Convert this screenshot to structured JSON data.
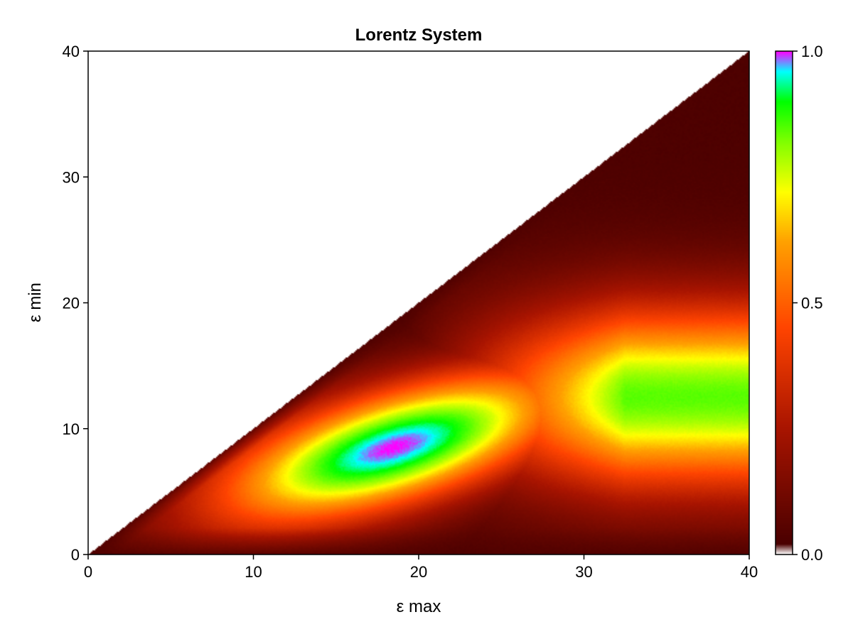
{
  "chart_data": {
    "type": "heatmap",
    "title": "Lorentz System",
    "xlabel": "ε max",
    "ylabel": "ε min",
    "xlim": [
      0,
      40
    ],
    "ylim": [
      0,
      40
    ],
    "x_ticks": [
      0,
      10,
      20,
      30,
      40
    ],
    "y_ticks": [
      0,
      10,
      20,
      30,
      40
    ],
    "region": "lower-triangle (ε min ≤ ε max)",
    "peak": {
      "x": 18.5,
      "y": 8.5,
      "value": 1.0
    },
    "colorbar": {
      "range": [
        0.0,
        1.0
      ],
      "ticks": [
        "0.0",
        "0.5",
        "1.0"
      ],
      "position": "right",
      "colormap": [
        "#ffffff",
        "#4a0000",
        "#a81400",
        "#ff4400",
        "#ffa000",
        "#ffff00",
        "#80ff00",
        "#00ff00",
        "#00ffff",
        "#ff00ff"
      ]
    },
    "grid": false
  }
}
